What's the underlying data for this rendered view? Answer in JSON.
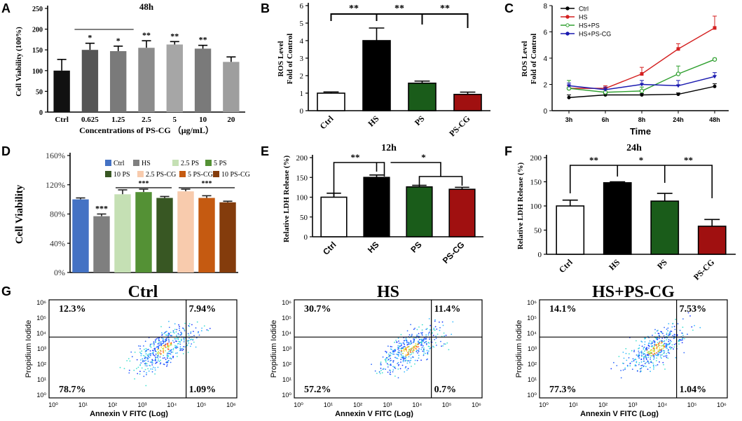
{
  "colors": {
    "black": "#000000",
    "hs": "#000000",
    "ps": "#1a5c1a",
    "pscg": "#a01010",
    "gray": "#6b6b6b"
  },
  "chart_data": [
    {
      "panel": "A",
      "type": "bar",
      "title": "48h",
      "ylabel": "Cell Viability (100%)",
      "xlabel": "Concentrations of PS-CG （μg/mL）",
      "categories": [
        "Ctrl",
        "0.625",
        "1.25",
        "2.5",
        "5",
        "10",
        "20"
      ],
      "values": [
        100,
        150,
        147,
        155,
        163,
        153,
        121
      ],
      "errors": [
        27,
        16,
        12,
        17,
        7,
        8,
        12
      ],
      "colors": [
        "#111111",
        "#555555",
        "#7a7a7a",
        "#8c8c8c",
        "#a6a6a6",
        "#7a7a7a",
        "#9e9e9e"
      ],
      "significance": [
        "",
        "*",
        "*",
        "**",
        "**",
        "**",
        ""
      ],
      "ylim": [
        0,
        250
      ],
      "yticks": [
        "0",
        "50",
        "100",
        "150",
        "200",
        "250"
      ]
    },
    {
      "panel": "B",
      "type": "bar",
      "title": "",
      "ylabel": "ROS Level\nFold of Control",
      "categories": [
        "Ctrl",
        "HS",
        "PS",
        "PS-CG"
      ],
      "values": [
        1.0,
        4.0,
        1.57,
        0.93
      ],
      "errors": [
        0.07,
        0.72,
        0.12,
        0.13
      ],
      "colors": [
        "#ffffff",
        "#000000",
        "#1a5c1a",
        "#a01010"
      ],
      "brackets": [
        "**",
        "**",
        "**"
      ],
      "ylim": [
        0,
        6
      ],
      "yticks": [
        "0",
        "1",
        "2",
        "3",
        "4",
        "5",
        "6"
      ]
    },
    {
      "panel": "C",
      "type": "line",
      "xlabel": "Time",
      "ylabel": "ROS Level\nFold of Control",
      "x": [
        "3h",
        "6h",
        "8h",
        "24h",
        "48h"
      ],
      "series": [
        {
          "name": "Ctrl",
          "values": [
            1.0,
            1.2,
            1.2,
            1.25,
            1.85
          ],
          "errors": [
            0.2,
            0.1,
            0.1,
            0.1,
            0.2
          ],
          "color": "#000000",
          "marker": "filled"
        },
        {
          "name": "HS",
          "values": [
            1.7,
            1.7,
            2.8,
            4.7,
            6.3
          ],
          "errors": [
            0.2,
            0.2,
            0.5,
            0.4,
            0.9
          ],
          "color": "#d42020",
          "marker": "square"
        },
        {
          "name": "HS+PS",
          "values": [
            1.7,
            1.4,
            1.5,
            2.8,
            3.9
          ],
          "errors": [
            0.6,
            0.2,
            0.3,
            0.6,
            0.1
          ],
          "color": "#30a030",
          "marker": "open"
        },
        {
          "name": "HS+PS-CG",
          "values": [
            1.9,
            1.6,
            2.0,
            1.9,
            2.6
          ],
          "errors": [
            0.2,
            0.2,
            0.3,
            0.4,
            0.3
          ],
          "color": "#1a1ab0",
          "marker": "triangle"
        }
      ],
      "ylim": [
        0,
        8
      ],
      "yticks": [
        "0",
        "2",
        "4",
        "6",
        "8"
      ]
    },
    {
      "panel": "D",
      "type": "bar",
      "ylabel": "Cell Viability",
      "categories": [
        "Ctrl",
        "HS",
        "2.5 PS",
        "5 PS",
        "10 PS",
        "2.5 PS-CG",
        "5 PS-CG",
        "10 PS-CG"
      ],
      "values": [
        100,
        77,
        107,
        110,
        102,
        111,
        102,
        96
      ],
      "errors": [
        2,
        3,
        6,
        4,
        2,
        3,
        3,
        1.5
      ],
      "colors": [
        "#4472c4",
        "#7f7f7f",
        "#c5e0b4",
        "#549135",
        "#385723",
        "#f8cbad",
        "#c55a11",
        "#843c0c"
      ],
      "significance": [
        "",
        "***",
        "",
        "",
        "",
        "",
        "",
        ""
      ],
      "group_marks": [
        "***",
        "***"
      ],
      "ylim": [
        0,
        160
      ],
      "yticks": [
        "0%",
        "40%",
        "80%",
        "120%",
        "160%"
      ]
    },
    {
      "panel": "E",
      "type": "bar",
      "title": "12h",
      "ylabel": "Relative LDH Release (%)",
      "categories": [
        "Ctrl",
        "HS",
        "PS",
        "PS-CG"
      ],
      "values": [
        100,
        150,
        126,
        120
      ],
      "errors": [
        10,
        6,
        4,
        5
      ],
      "colors": [
        "#ffffff",
        "#000000",
        "#1a5c1a",
        "#a01010"
      ],
      "brackets": [
        "**",
        "*"
      ],
      "ylim": [
        0,
        200
      ],
      "yticks": [
        "0",
        "50",
        "100",
        "150",
        "200"
      ]
    },
    {
      "panel": "F",
      "type": "bar",
      "title": "24h",
      "ylabel": "Relative LDH Release (%)",
      "categories": [
        "Ctrl",
        "HS",
        "PS",
        "PS-CG"
      ],
      "values": [
        100,
        148,
        110,
        58
      ],
      "errors": [
        12,
        2,
        16,
        14
      ],
      "colors": [
        "#ffffff",
        "#000000",
        "#1a5c1a",
        "#a01010"
      ],
      "brackets": [
        "**",
        "*",
        "**"
      ],
      "ylim": [
        0,
        200
      ],
      "yticks": [
        "0",
        "50",
        "100",
        "150",
        "200"
      ]
    },
    {
      "panel": "G",
      "type": "scatter",
      "xlabel": "Annexin V FITC (Log)",
      "ylabel": "Propidium Iodide",
      "ticks": [
        "10⁰",
        "10¹",
        "10²",
        "10³",
        "10⁴",
        "10⁵",
        "10⁶"
      ],
      "plots": [
        {
          "title": "Ctrl",
          "quadrants": {
            "ul": "12.3%",
            "ur": "7.94%",
            "ll": "78.7%",
            "lr": "1.09%"
          }
        },
        {
          "title": "HS",
          "quadrants": {
            "ul": "30.7%",
            "ur": "11.4%",
            "ll": "57.2%",
            "lr": "0.7%"
          }
        },
        {
          "title": "HS+PS-CG",
          "quadrants": {
            "ul": "14.1%",
            "ur": "7.53%",
            "ll": "77.3%",
            "lr": "1.04%"
          }
        }
      ]
    }
  ],
  "panel_labels": {
    "a": "A",
    "b": "B",
    "c": "C",
    "d": "D",
    "e": "E",
    "f": "F",
    "g": "G"
  }
}
